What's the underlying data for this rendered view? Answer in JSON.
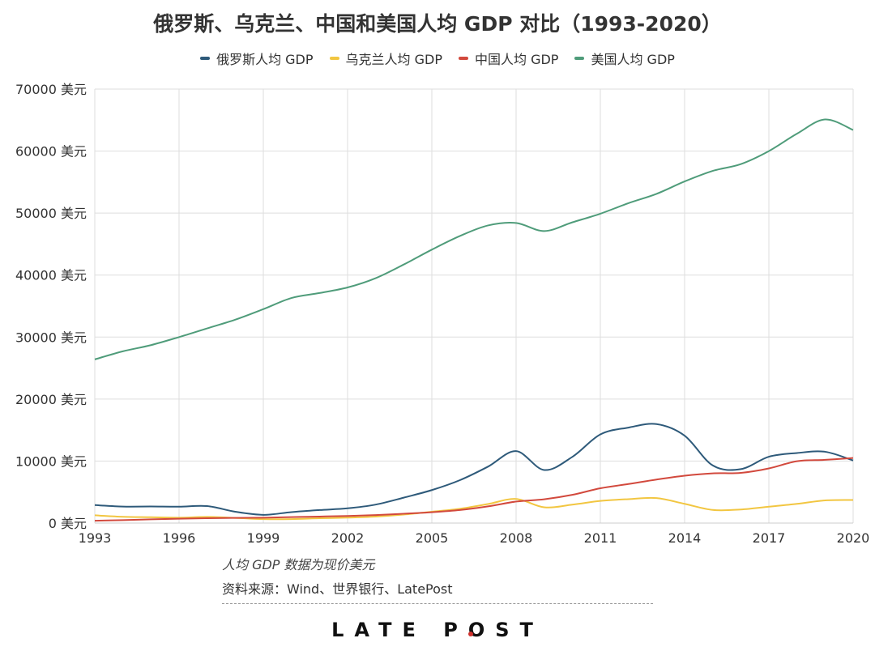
{
  "title": "俄罗斯、乌克兰、中国和美国人均 GDP 对比（1993-2020）",
  "note": "人均 GDP 数据为现价美元",
  "source": "资料来源：Wind、世界银行、LatePost",
  "brand": "LATE POST",
  "chart_data": {
    "type": "line",
    "title": "俄罗斯、乌克兰、中国和美国人均 GDP 对比（1993-2020）",
    "xlabel": "",
    "ylabel": "",
    "x": [
      1993,
      1994,
      1995,
      1996,
      1997,
      1998,
      1999,
      2000,
      2001,
      2002,
      2003,
      2004,
      2005,
      2006,
      2007,
      2008,
      2009,
      2010,
      2011,
      2012,
      2013,
      2014,
      2015,
      2016,
      2017,
      2018,
      2019,
      2020
    ],
    "xticks": [
      1993,
      1996,
      1999,
      2002,
      2005,
      2008,
      2011,
      2014,
      2017,
      2020
    ],
    "ylim": [
      0,
      70000
    ],
    "yticks": [
      0,
      10000,
      20000,
      30000,
      40000,
      50000,
      60000,
      70000
    ],
    "ytick_labels": [
      "0 美元",
      "10000 美元",
      "20000 美元",
      "30000 美元",
      "40000 美元",
      "50000 美元",
      "60000 美元",
      "70000 美元"
    ],
    "grid": true,
    "legend_position": "top",
    "series": [
      {
        "name": "俄罗斯人均 GDP",
        "color": "#2e5a7a",
        "values": [
          2900,
          2660,
          2670,
          2640,
          2740,
          1830,
          1330,
          1770,
          2100,
          2380,
          2980,
          4100,
          5320,
          6920,
          9100,
          11600,
          8560,
          10670,
          14300,
          15400,
          15970,
          14100,
          9300,
          8700,
          10700,
          11300,
          11500,
          10100
        ]
      },
      {
        "name": "乌克兰人均 GDP",
        "color": "#f2c641",
        "values": [
          1250,
          1010,
          940,
          870,
          990,
          840,
          640,
          640,
          780,
          880,
          1050,
          1370,
          1830,
          2300,
          3070,
          3890,
          2550,
          2970,
          3570,
          3860,
          4030,
          3100,
          2120,
          2190,
          2640,
          3100,
          3660,
          3730
        ]
      },
      {
        "name": "中国人均 GDP",
        "color": "#d2493d",
        "values": [
          380,
          470,
          610,
          710,
          780,
          830,
          870,
          960,
          1050,
          1150,
          1290,
          1510,
          1750,
          2100,
          2690,
          3470,
          3840,
          4550,
          5610,
          6300,
          7020,
          7640,
          8020,
          8100,
          8820,
          9980,
          10200,
          10500
        ]
      },
      {
        "name": "美国人均 GDP",
        "color": "#4f9c7a",
        "values": [
          26400,
          27700,
          28700,
          30000,
          31400,
          32800,
          34500,
          36300,
          37100,
          38000,
          39500,
          41700,
          44100,
          46300,
          48000,
          48400,
          47100,
          48500,
          49900,
          51600,
          53100,
          55100,
          56800,
          57900,
          60000,
          62800,
          65100,
          63400
        ]
      }
    ]
  }
}
